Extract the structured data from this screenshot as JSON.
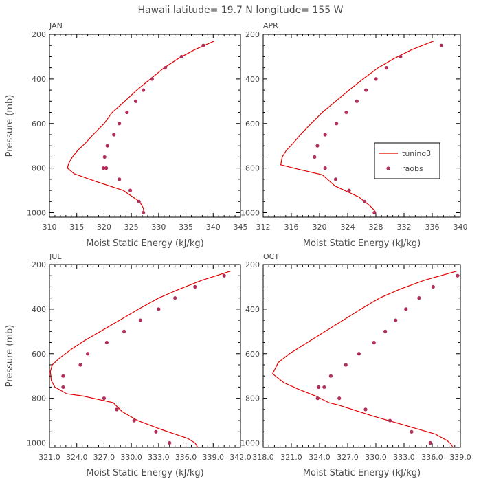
{
  "figure": {
    "title": "Hawaii  latitude= 19.7 N longitude= 155 W"
  },
  "colors": {
    "model": "#e00000",
    "obs": "#b0305a",
    "frame": "#000000",
    "text": "#4a4a4a"
  },
  "chart_data": [
    {
      "type": "line",
      "panel": "JAN",
      "title": "JAN",
      "xlabel": "Moist Static Energy (kJ/kg)",
      "ylabel": "Pressure (mb)",
      "xlim": [
        310,
        345
      ],
      "ylim": [
        1020,
        200
      ],
      "y_inverted": true,
      "xticks": [
        310,
        315,
        320,
        325,
        330,
        335,
        340,
        345
      ],
      "xtick_labels": [
        "310",
        "315",
        "320",
        "325",
        "330",
        "335",
        "340",
        "345"
      ],
      "yticks": [
        200,
        400,
        600,
        800,
        1000
      ],
      "ytick_labels": [
        "200",
        "400",
        "600",
        "800",
        "1000"
      ],
      "legend": false,
      "series": [
        {
          "name": "tuning3",
          "style": "line",
          "x": [
            340.2,
            336.5,
            333.5,
            331,
            328.5,
            326,
            323.8,
            321.5,
            320,
            318,
            316.5,
            315.2,
            314.2,
            313.5,
            313.3,
            314.5,
            318.5,
            323.5,
            326.5,
            327.2,
            327.3
          ],
          "y": [
            230,
            270,
            310,
            350,
            400,
            450,
            500,
            550,
            600,
            650,
            690,
            720,
            750,
            780,
            800,
            825,
            860,
            900,
            950,
            980,
            1000
          ]
        },
        {
          "name": "raobs",
          "style": "points",
          "x": [
            338.2,
            334.2,
            331.2,
            328.8,
            327.2,
            325.8,
            324.2,
            322.8,
            321.8,
            320.6,
            320.1,
            319.9,
            320.4,
            322.8,
            324.8,
            326.4,
            327.2
          ],
          "y": [
            250,
            300,
            350,
            400,
            450,
            500,
            550,
            600,
            650,
            700,
            750,
            800,
            800,
            850,
            900,
            950,
            1000
          ]
        }
      ]
    },
    {
      "type": "line",
      "panel": "APR",
      "title": "APR",
      "xlabel": "Moist Static Energy (kJ/kg)",
      "ylabel": "",
      "xlim": [
        312,
        340
      ],
      "ylim": [
        1020,
        200
      ],
      "y_inverted": true,
      "xticks": [
        312,
        316,
        320,
        324,
        328,
        332,
        336,
        340
      ],
      "xtick_labels": [
        "312",
        "316",
        "320",
        "324",
        "328",
        "332",
        "336",
        "340"
      ],
      "yticks": [
        200,
        400,
        600,
        800,
        1000
      ],
      "ytick_labels": [
        "200",
        "400",
        "600",
        "800",
        "1000"
      ],
      "legend": true,
      "legend_position": "center-right",
      "series": [
        {
          "name": "tuning3",
          "style": "line",
          "x": [
            336.2,
            333,
            330.5,
            328.3,
            326.2,
            324.2,
            322.3,
            320.4,
            318.8,
            317.3,
            316.2,
            315.3,
            314.7,
            314.5,
            317,
            320.4,
            322.2,
            325.6,
            327.2,
            327.8,
            327.9
          ],
          "y": [
            230,
            270,
            310,
            350,
            400,
            450,
            500,
            550,
            600,
            650,
            690,
            720,
            750,
            785,
            805,
            830,
            880,
            930,
            970,
            990,
            1000
          ]
        },
        {
          "name": "raobs",
          "style": "points",
          "x": [
            337.3,
            331.5,
            329.5,
            328.0,
            326.6,
            325.3,
            323.8,
            322.4,
            320.8,
            319.7,
            319.3,
            320.8,
            322.3,
            324.2,
            326.4,
            327.8
          ],
          "y": [
            250,
            300,
            350,
            400,
            450,
            500,
            550,
            600,
            650,
            700,
            750,
            800,
            850,
            900,
            950,
            1000
          ]
        }
      ]
    },
    {
      "type": "line",
      "panel": "JUL",
      "title": "JUL",
      "xlabel": "Moist Static Energy (kJ/kg)",
      "ylabel": "Pressure (mb)",
      "xlim": [
        321.0,
        342.0
      ],
      "ylim": [
        1020,
        200
      ],
      "y_inverted": true,
      "xticks": [
        321.0,
        324.0,
        327.0,
        330.0,
        333.0,
        336.0,
        339.0,
        342.0
      ],
      "xtick_labels": [
        "321.0",
        "324.0",
        "327.0",
        "330.0",
        "333.0",
        "336.0",
        "339.0",
        "342.0"
      ],
      "yticks": [
        200,
        400,
        600,
        800,
        1000
      ],
      "ytick_labels": [
        "200",
        "400",
        "600",
        "800",
        "1000"
      ],
      "legend": false,
      "series": [
        {
          "name": "tuning3",
          "style": "line",
          "x": [
            340.9,
            337.8,
            335.3,
            333.0,
            330.8,
            328.7,
            326.6,
            324.9,
            323.4,
            322.1,
            321.3,
            321.1,
            321.2,
            321.6,
            322.9,
            324.7,
            328.0,
            329.0,
            330.7,
            333.3,
            336.2,
            337.0,
            337.3
          ],
          "y": [
            230,
            270,
            310,
            350,
            400,
            450,
            500,
            540,
            580,
            620,
            650,
            680,
            720,
            750,
            780,
            790,
            820,
            860,
            900,
            940,
            980,
            1000,
            1020
          ]
        },
        {
          "name": "raobs",
          "style": "points",
          "x": [
            340.2,
            337.0,
            334.8,
            333.0,
            331.0,
            329.2,
            327.3,
            325.2,
            324.4,
            322.5,
            322.5,
            327.0,
            328.4,
            330.3,
            332.7,
            334.2
          ],
          "y": [
            250,
            300,
            350,
            400,
            450,
            500,
            550,
            600,
            650,
            700,
            750,
            800,
            850,
            900,
            950,
            1000
          ]
        }
      ]
    },
    {
      "type": "line",
      "panel": "OCT",
      "title": "OCT",
      "xlabel": "Moist Static Energy (kJ/kg)",
      "ylabel": "",
      "xlim": [
        318.0,
        339.0
      ],
      "ylim": [
        1020,
        200
      ],
      "y_inverted": true,
      "xticks": [
        318.0,
        321.0,
        324.0,
        327.0,
        330.0,
        333.0,
        336.0,
        339.0
      ],
      "xtick_labels": [
        "318.0",
        "321.0",
        "324.0",
        "327.0",
        "330.0",
        "333.0",
        "336.0",
        "339.0"
      ],
      "yticks": [
        200,
        400,
        600,
        800,
        1000
      ],
      "ytick_labels": [
        "200",
        "400",
        "600",
        "800",
        "1000"
      ],
      "legend": false,
      "series": [
        {
          "name": "tuning3",
          "style": "line",
          "x": [
            338.6,
            335.2,
            332.6,
            330.4,
            328.4,
            326.5,
            324.6,
            322.7,
            320.8,
            319.6,
            319.0,
            320.2,
            321.8,
            323.6,
            325.0,
            326.0,
            329.7,
            333.0,
            336.3,
            337.6,
            338.0,
            338.2
          ],
          "y": [
            230,
            270,
            310,
            350,
            400,
            450,
            500,
            550,
            600,
            640,
            690,
            730,
            760,
            790,
            820,
            830,
            880,
            920,
            960,
            990,
            1005,
            1020
          ]
        },
        {
          "name": "raobs",
          "style": "points",
          "x": [
            338.7,
            336.1,
            334.6,
            333.2,
            332.1,
            331.0,
            329.8,
            328.2,
            326.8,
            325.2,
            324.5,
            323.8,
            323.9,
            326.1,
            328.9,
            331.5,
            333.8,
            335.8
          ],
          "y": [
            250,
            300,
            350,
            400,
            450,
            500,
            550,
            600,
            650,
            700,
            750,
            800,
            750,
            800,
            850,
            900,
            950,
            1000
          ]
        }
      ]
    }
  ]
}
